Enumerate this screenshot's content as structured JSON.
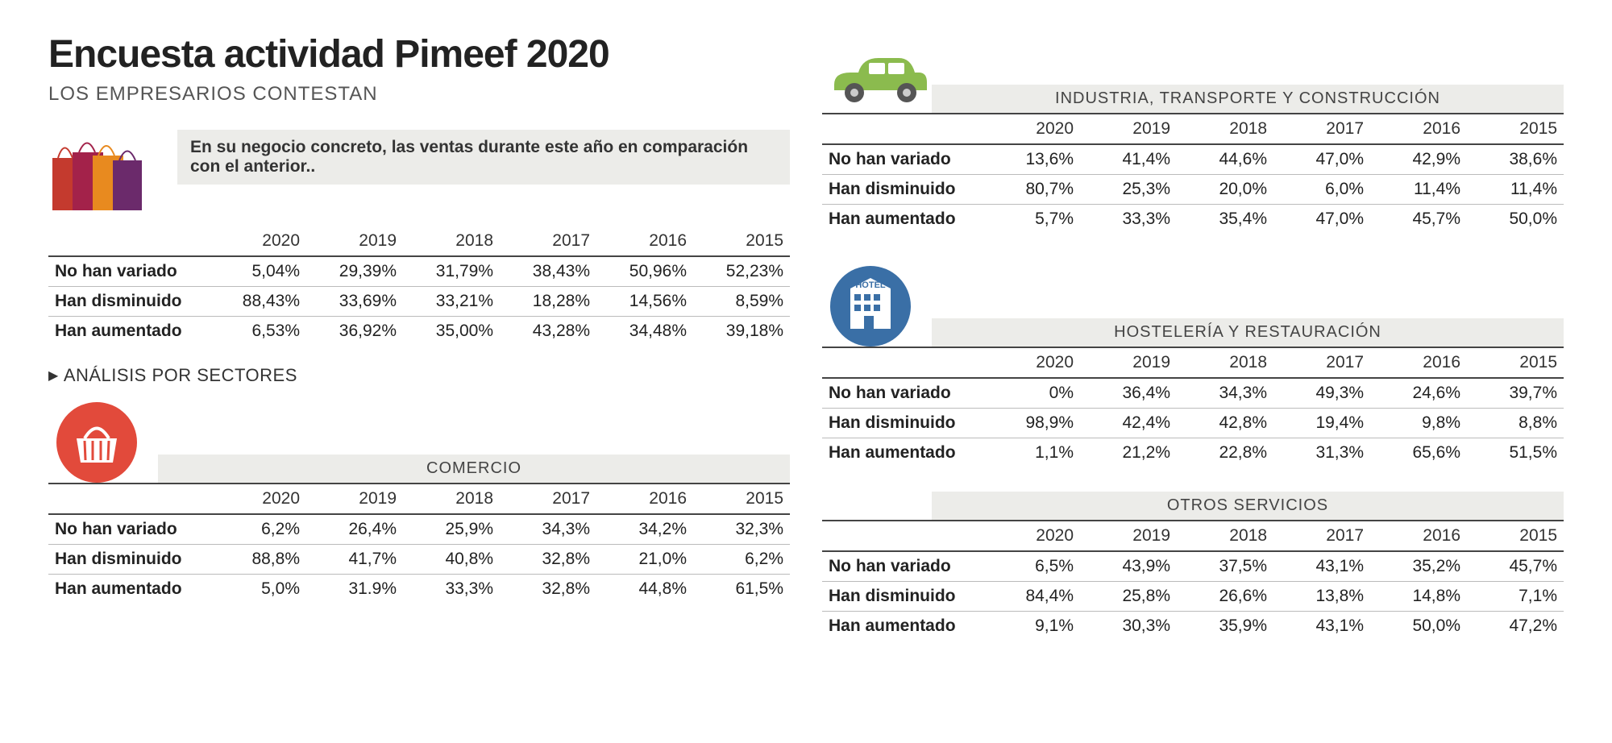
{
  "title": "Encuesta actividad Pimeef 2020",
  "subtitle": "LOS EMPRESARIOS CONTESTAN",
  "intro_text": "En su negocio concreto, las ventas durante este año en comparación con el anterior..",
  "analisis_label": "ANÁLISIS POR SECTORES",
  "years": [
    "2020",
    "2019",
    "2018",
    "2017",
    "2016",
    "2015"
  ],
  "row_labels": [
    "No han variado",
    "Han disminuido",
    "Han aumentado"
  ],
  "tables": {
    "general": {
      "title": "",
      "rows": [
        [
          "5,04%",
          "29,39%",
          "31,79%",
          "38,43%",
          "50,96%",
          "52,23%"
        ],
        [
          "88,43%",
          "33,69%",
          "33,21%",
          "18,28%",
          "14,56%",
          "8,59%"
        ],
        [
          "6,53%",
          "36,92%",
          "35,00%",
          "43,28%",
          "34,48%",
          "39,18%"
        ]
      ]
    },
    "comercio": {
      "title": "COMERCIO",
      "rows": [
        [
          "6,2%",
          "26,4%",
          "25,9%",
          "34,3%",
          "34,2%",
          "32,3%"
        ],
        [
          "88,8%",
          "41,7%",
          "40,8%",
          "32,8%",
          "21,0%",
          "6,2%"
        ],
        [
          "5,0%",
          "31.9%",
          "33,3%",
          "32,8%",
          "44,8%",
          "61,5%"
        ]
      ]
    },
    "industria": {
      "title": "INDUSTRIA, TRANSPORTE Y CONSTRUCCIÓN",
      "rows": [
        [
          "13,6%",
          "41,4%",
          "44,6%",
          "47,0%",
          "42,9%",
          "38,6%"
        ],
        [
          "80,7%",
          "25,3%",
          "20,0%",
          "6,0%",
          "11,4%",
          "11,4%"
        ],
        [
          "5,7%",
          "33,3%",
          "35,4%",
          "47,0%",
          "45,7%",
          "50,0%"
        ]
      ]
    },
    "hosteleria": {
      "title": "HOSTELERÍA Y RESTAURACIÓN",
      "rows": [
        [
          "0%",
          "36,4%",
          "34,3%",
          "49,3%",
          "24,6%",
          "39,7%"
        ],
        [
          "98,9%",
          "42,4%",
          "42,8%",
          "19,4%",
          "9,8%",
          "8,8%"
        ],
        [
          "1,1%",
          "21,2%",
          "22,8%",
          "31,3%",
          "65,6%",
          "51,5%"
        ]
      ]
    },
    "otros": {
      "title": "OTROS SERVICIOS",
      "rows": [
        [
          "6,5%",
          "43,9%",
          "37,5%",
          "43,1%",
          "35,2%",
          "45,7%"
        ],
        [
          "84,4%",
          "25,8%",
          "26,6%",
          "13,8%",
          "14,8%",
          "7,1%"
        ],
        [
          "9,1%",
          "30,3%",
          "35,9%",
          "43,1%",
          "50,0%",
          "47,2%"
        ]
      ]
    }
  },
  "icons": {
    "bags_colors": [
      "#e24a3b",
      "#a3224a",
      "#e88a1f",
      "#6b2a6b",
      "#c43a2e"
    ],
    "basket_bg": "#e24a3b",
    "car_color": "#8bbb4e",
    "hotel_bg": "#3a6fa6"
  },
  "styling": {
    "heading_bg": "#ecece9",
    "border_color": "#444444",
    "row_border": "#bbbbbb",
    "title_fontsize": 48,
    "subtitle_fontsize": 24,
    "cell_fontsize": 21
  }
}
